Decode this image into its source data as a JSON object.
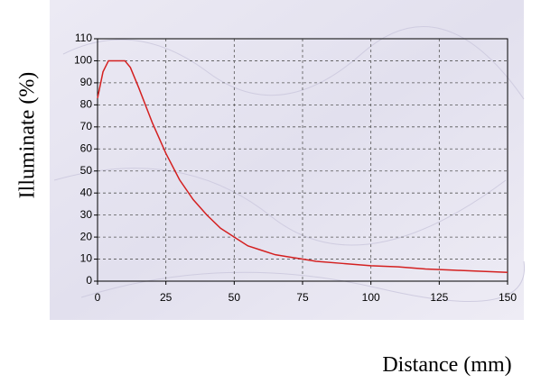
{
  "chart_data": {
    "type": "line",
    "x_label": "Distance (mm)",
    "y_label": "Illuminate (%)",
    "x": [
      0,
      2,
      4,
      6,
      8,
      10,
      12,
      15,
      20,
      25,
      30,
      35,
      40,
      45,
      50,
      55,
      60,
      65,
      70,
      75,
      80,
      90,
      100,
      110,
      120,
      130,
      140,
      150
    ],
    "series": [
      {
        "name": "Illuminate",
        "color": "#d42020",
        "values": [
          83,
          95,
          100,
          100,
          100,
          100,
          97,
          88,
          72,
          58,
          46,
          37,
          30,
          24,
          20,
          16,
          14,
          12,
          11,
          10,
          9,
          8,
          7,
          6.5,
          5.5,
          5,
          4.5,
          4
        ]
      }
    ],
    "xlim": [
      0,
      150
    ],
    "xticks": [
      0,
      25,
      50,
      75,
      100,
      125,
      150
    ],
    "ylim": [
      0,
      110
    ],
    "yticks": [
      0,
      10,
      20,
      30,
      40,
      50,
      60,
      70,
      80,
      90,
      100,
      110
    ],
    "grid": true
  }
}
